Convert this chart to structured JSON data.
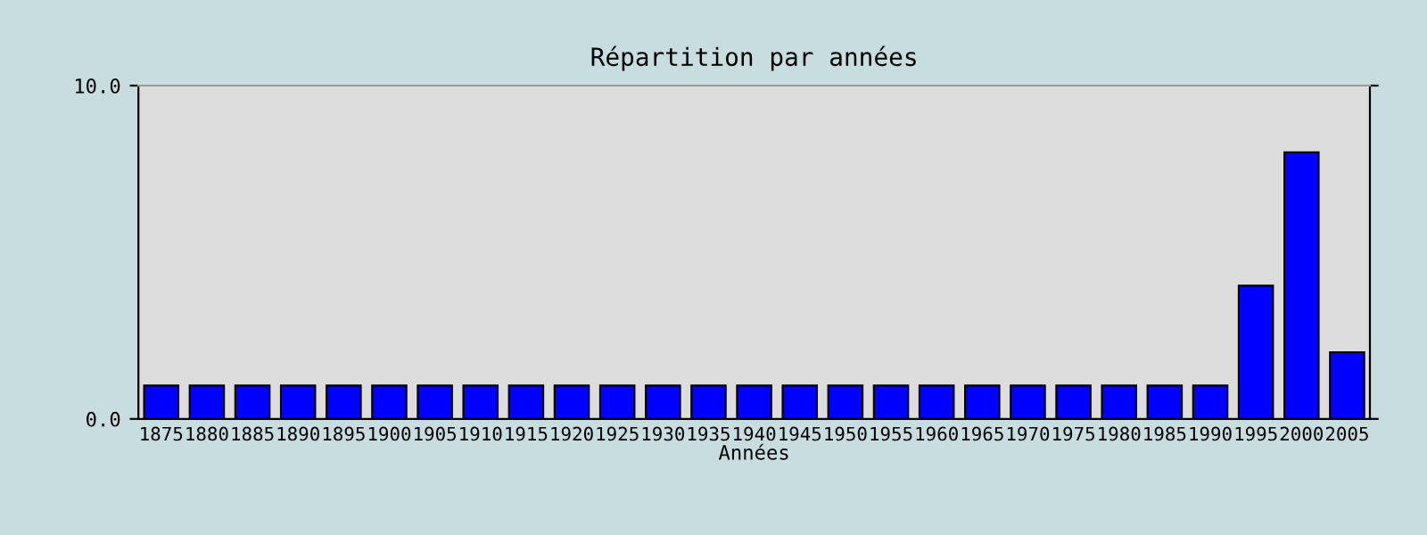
{
  "chart_data": {
    "type": "bar",
    "title": "Répartition par années",
    "xlabel": "Années",
    "categories": [
      "1875",
      "1880",
      "1885",
      "1890",
      "1895",
      "1900",
      "1905",
      "1910",
      "1915",
      "1920",
      "1925",
      "1930",
      "1935",
      "1940",
      "1945",
      "1950",
      "1955",
      "1960",
      "1965",
      "1970",
      "1975",
      "1980",
      "1985",
      "1990",
      "1995",
      "2000",
      "2005"
    ],
    "values": [
      1,
      1,
      1,
      1,
      1,
      1,
      1,
      1,
      1,
      1,
      1,
      1,
      1,
      1,
      1,
      1,
      1,
      1,
      1,
      1,
      1,
      1,
      1,
      1,
      4,
      8,
      2
    ],
    "color": "#0000ff",
    "ylim": [
      0,
      10
    ],
    "yticks": [
      {
        "value": 0,
        "label": "0.0"
      },
      {
        "value": 10,
        "label": "10.0"
      }
    ],
    "grid": false
  }
}
